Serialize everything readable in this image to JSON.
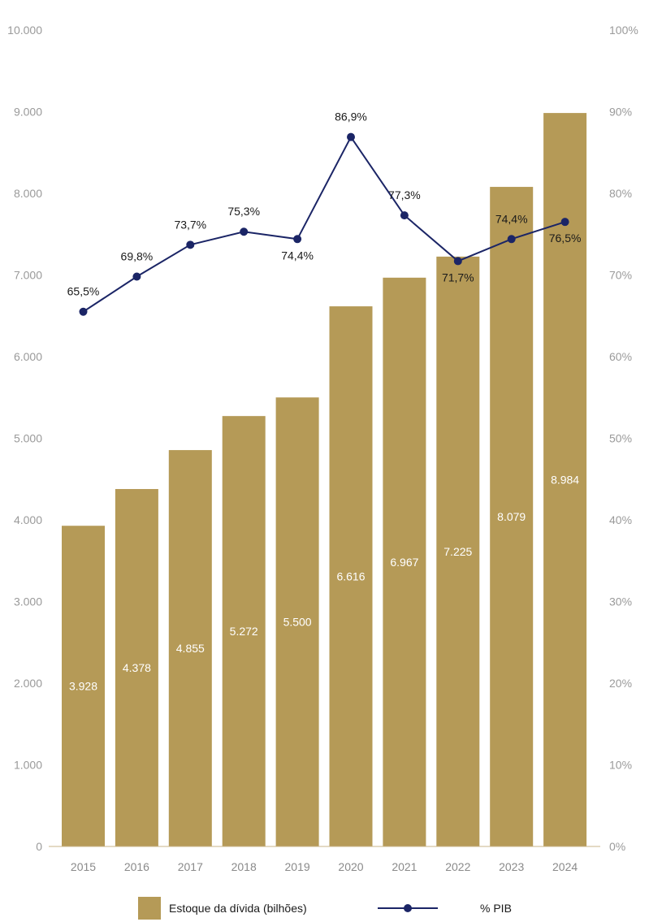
{
  "chart_data": {
    "type": "bar",
    "categories": [
      "2015",
      "2016",
      "2017",
      "2018",
      "2019",
      "2020",
      "2021",
      "2022",
      "2023",
      "2024"
    ],
    "series": [
      {
        "name": "Estoque da dívida (bilhões)",
        "type": "bar",
        "axis": "left",
        "values": [
          3928,
          4378,
          4855,
          5272,
          5500,
          6616,
          6967,
          7225,
          8079,
          8984
        ],
        "labels": [
          "3.928",
          "4.378",
          "4.855",
          "5.272",
          "5.500",
          "6.616",
          "6.967",
          "7.225",
          "8.079",
          "8.984"
        ]
      },
      {
        "name": "% PIB",
        "type": "line",
        "axis": "right",
        "values": [
          65.5,
          69.8,
          73.7,
          75.3,
          74.4,
          86.9,
          77.3,
          71.7,
          74.4,
          76.5
        ],
        "labels": [
          "65,5%",
          "69,8%",
          "73,7%",
          "75,3%",
          "74,4%",
          "86,9%",
          "77,3%",
          "71,7%",
          "74,4%",
          "76,5%"
        ]
      }
    ],
    "left_axis": {
      "ylim": [
        0,
        10000
      ],
      "ticks": [
        "0",
        "1.000",
        "2.000",
        "3.000",
        "4.000",
        "5.000",
        "6.000",
        "7.000",
        "8.000",
        "9.000",
        "10.000"
      ]
    },
    "right_axis": {
      "ylim": [
        0,
        100
      ],
      "ticks": [
        "0%",
        "10%",
        "20%",
        "30%",
        "40%",
        "50%",
        "60%",
        "70%",
        "80%",
        "90%",
        "100%"
      ]
    },
    "grid": false,
    "legend": "bottom",
    "colors": {
      "bar": "#b59a57",
      "line": "#1b2566",
      "axis": "#c9b48a"
    }
  }
}
